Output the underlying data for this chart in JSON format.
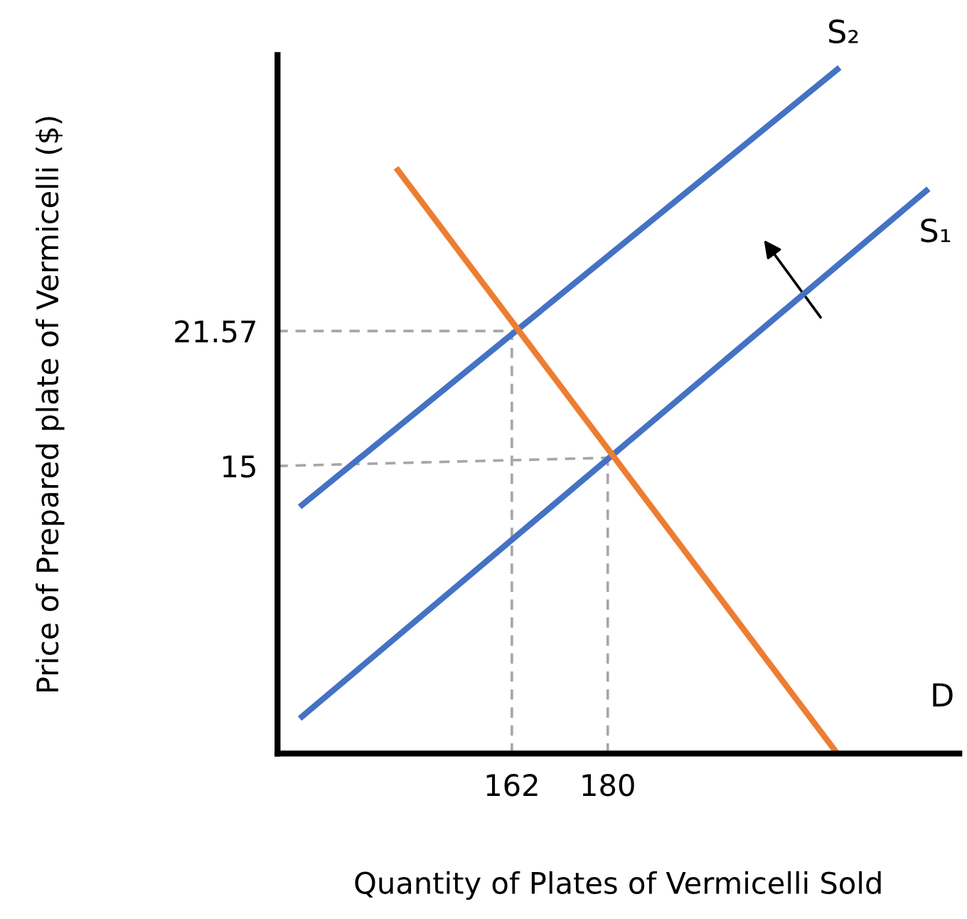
{
  "chart_data": {
    "type": "line",
    "xlabel": "Quantity of Plates of Vermicelli Sold",
    "ylabel": "Price of Prepared plate of Vermicelli ($)",
    "xlim": [
      118,
      246
    ],
    "ylim": [
      1,
      35
    ],
    "xticks": [
      162,
      180
    ],
    "yticks": [
      15,
      21.57
    ],
    "grid": false,
    "legend": false,
    "marker": "none",
    "tick_labels": true,
    "series": [
      {
        "color": "#4472c4",
        "x": [
          122.6,
          239.8
        ],
        "values": [
          2.8,
          28.4
        ]
      },
      {
        "color": "#4472c4",
        "x": [
          122.6,
          223.1
        ],
        "values": [
          13.1,
          34.3
        ]
      },
      {
        "color": "#ed7d31",
        "x": [
          140.6,
          223.1
        ],
        "values": [
          29.4,
          1
        ]
      },
      {
        "color": "#a6a6a6",
        "line_style": "dashed",
        "x": [
          118,
          162
        ],
        "values": [
          21.57,
          21.57
        ]
      },
      {
        "color": "#a6a6a6",
        "line_style": "dashed",
        "x": [
          162,
          162
        ],
        "values": [
          1,
          21.57
        ]
      },
      {
        "color": "#a6a6a6",
        "line_style": "dashed",
        "x": [
          118,
          180
        ],
        "values": [
          15,
          15.4
        ]
      },
      {
        "color": "#a6a6a6",
        "line_style": "dashed",
        "x": [
          180,
          180
        ],
        "values": [
          1,
          15.4
        ]
      }
    ],
    "annotations": [
      "S₂",
      "S₁",
      "D"
    ]
  }
}
